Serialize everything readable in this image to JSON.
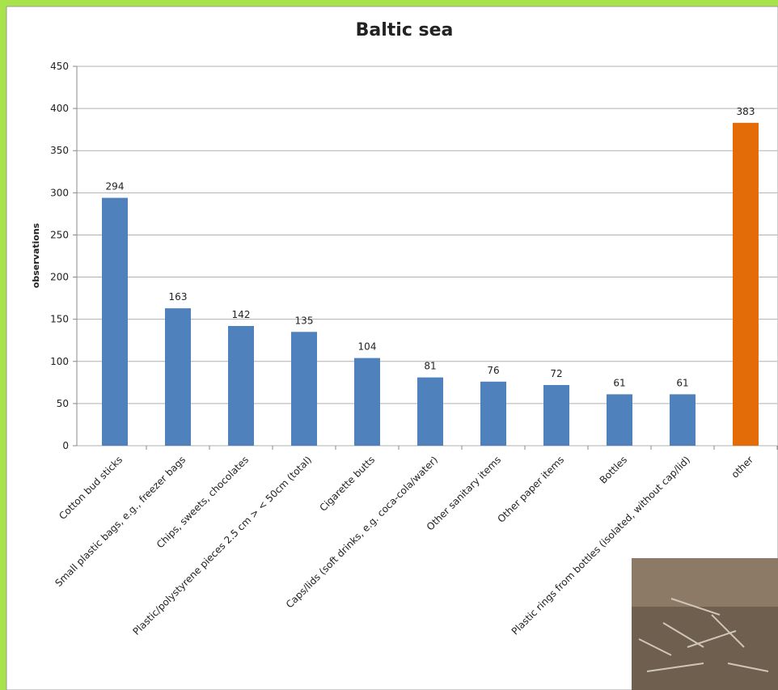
{
  "chart_data": {
    "type": "bar",
    "title": "Baltic sea",
    "y_label": "observations",
    "categories": [
      "Cotton bud sticks",
      "Small plastic bags, e.g., freezer bags",
      "Chips, sweets, chocolates",
      "Plastic/polystyrene pieces 2.5 cm > < 50cm (total)",
      "Cigarette butts",
      "Caps/lids (soft drinks, e.g. coca-cola/water)",
      "Other sanitary items",
      "Other paper items",
      "Bottles",
      "Plastic rings from bottles (isolated, without cap/lid)",
      "other"
    ],
    "values": [
      294,
      163,
      142,
      135,
      104,
      81,
      76,
      72,
      61,
      61,
      383
    ],
    "colors": [
      "#4f81bd",
      "#4f81bd",
      "#4f81bd",
      "#4f81bd",
      "#4f81bd",
      "#4f81bd",
      "#4f81bd",
      "#4f81bd",
      "#4f81bd",
      "#4f81bd",
      "#e36c09"
    ],
    "ylim": [
      0,
      450
    ],
    "yticks": [
      0,
      50,
      100,
      150,
      200,
      250,
      300,
      350,
      400,
      450
    ],
    "grid": true
  }
}
